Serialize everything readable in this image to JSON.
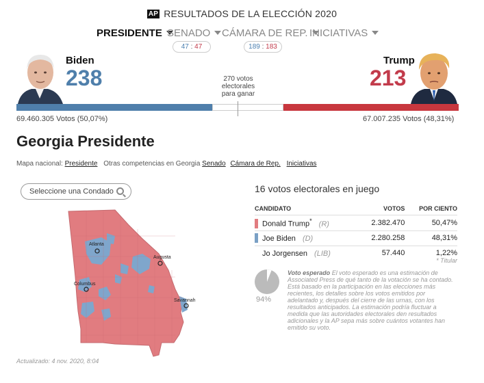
{
  "header": {
    "ap_logo": "AP",
    "title": "RESULTADOS DE LA ELECCIÓN 2020"
  },
  "nav": [
    {
      "label": "PRESIDENTE",
      "active": true
    },
    {
      "label": "SENADO",
      "active": false
    },
    {
      "label": "CÁMARA DE REP.",
      "active": false
    },
    {
      "label": "INICIATIVAS",
      "active": false
    }
  ],
  "senate_pill": {
    "d": "47",
    "sep": ":",
    "r": "47"
  },
  "house_pill": {
    "d": "189",
    "sep": ":",
    "r": "183"
  },
  "biden": {
    "name": "Biden",
    "ev": "238",
    "votes": "69.460.305 Votos (50,07%)"
  },
  "trump": {
    "name": "Trump",
    "ev": "213",
    "votes": "67.007.235 Votos (48,31%)"
  },
  "to_win": "270 votos electorales para ganar",
  "page_title": "Georgia Presidente",
  "links": {
    "prefix": "Mapa nacional:",
    "national": "Presidente",
    "middle": "Otras competencias en Georgia",
    "items": [
      "Senado",
      "Cámara de Rep.",
      "Iniciativas"
    ]
  },
  "county_search": {
    "placeholder": "Seleccione una Condado",
    "icon": "search-icon"
  },
  "map_cities": [
    "Atlanta",
    "Augusta",
    "Columbus",
    "Savannah"
  ],
  "ev_in_play": "16 votos electorales en juego",
  "table": {
    "headers": [
      "CANDIDATO",
      "VOTOS",
      "POR CIENTO"
    ],
    "rows": [
      {
        "name": "Donald Trump",
        "mark": "*",
        "party": "(R)",
        "votes": "2.382.470",
        "pct": "50,47%",
        "color": "#e17c80"
      },
      {
        "name": "Joe Biden",
        "party": "(D)",
        "votes": "2.280.258",
        "pct": "48,31%",
        "color": "#7aa0c5"
      },
      {
        "name": "Jo Jorgensen",
        "party": "(LIB)",
        "votes": "57.440",
        "pct": "1,22%",
        "color": ""
      }
    ],
    "footnote": "* Titular"
  },
  "expected_vote": {
    "pct": "94%",
    "fraction": 0.94,
    "label": "Voto esperado",
    "text": "El voto esperado es una estimación de Associated Press de qué tanto de la votación se ha contado. Está basado en la participación en las elecciones más recientes, los detalles sobre los votos emitidos por adelantado y, después del cierre de las urnas, con los resultados anticipados. La estimación podría fluctuar a medida que las autoridades electorales den resultados adicionales y la AP sepa más sobre cuántos votantes han emitido su voto."
  },
  "updated": "Actualizado: 4 nov. 2020, 8:04",
  "colors": {
    "dem": "#4f7fab",
    "rep": "#c8373e",
    "dem_text": "#4b7fb0",
    "rep_text": "#c23b4b"
  }
}
